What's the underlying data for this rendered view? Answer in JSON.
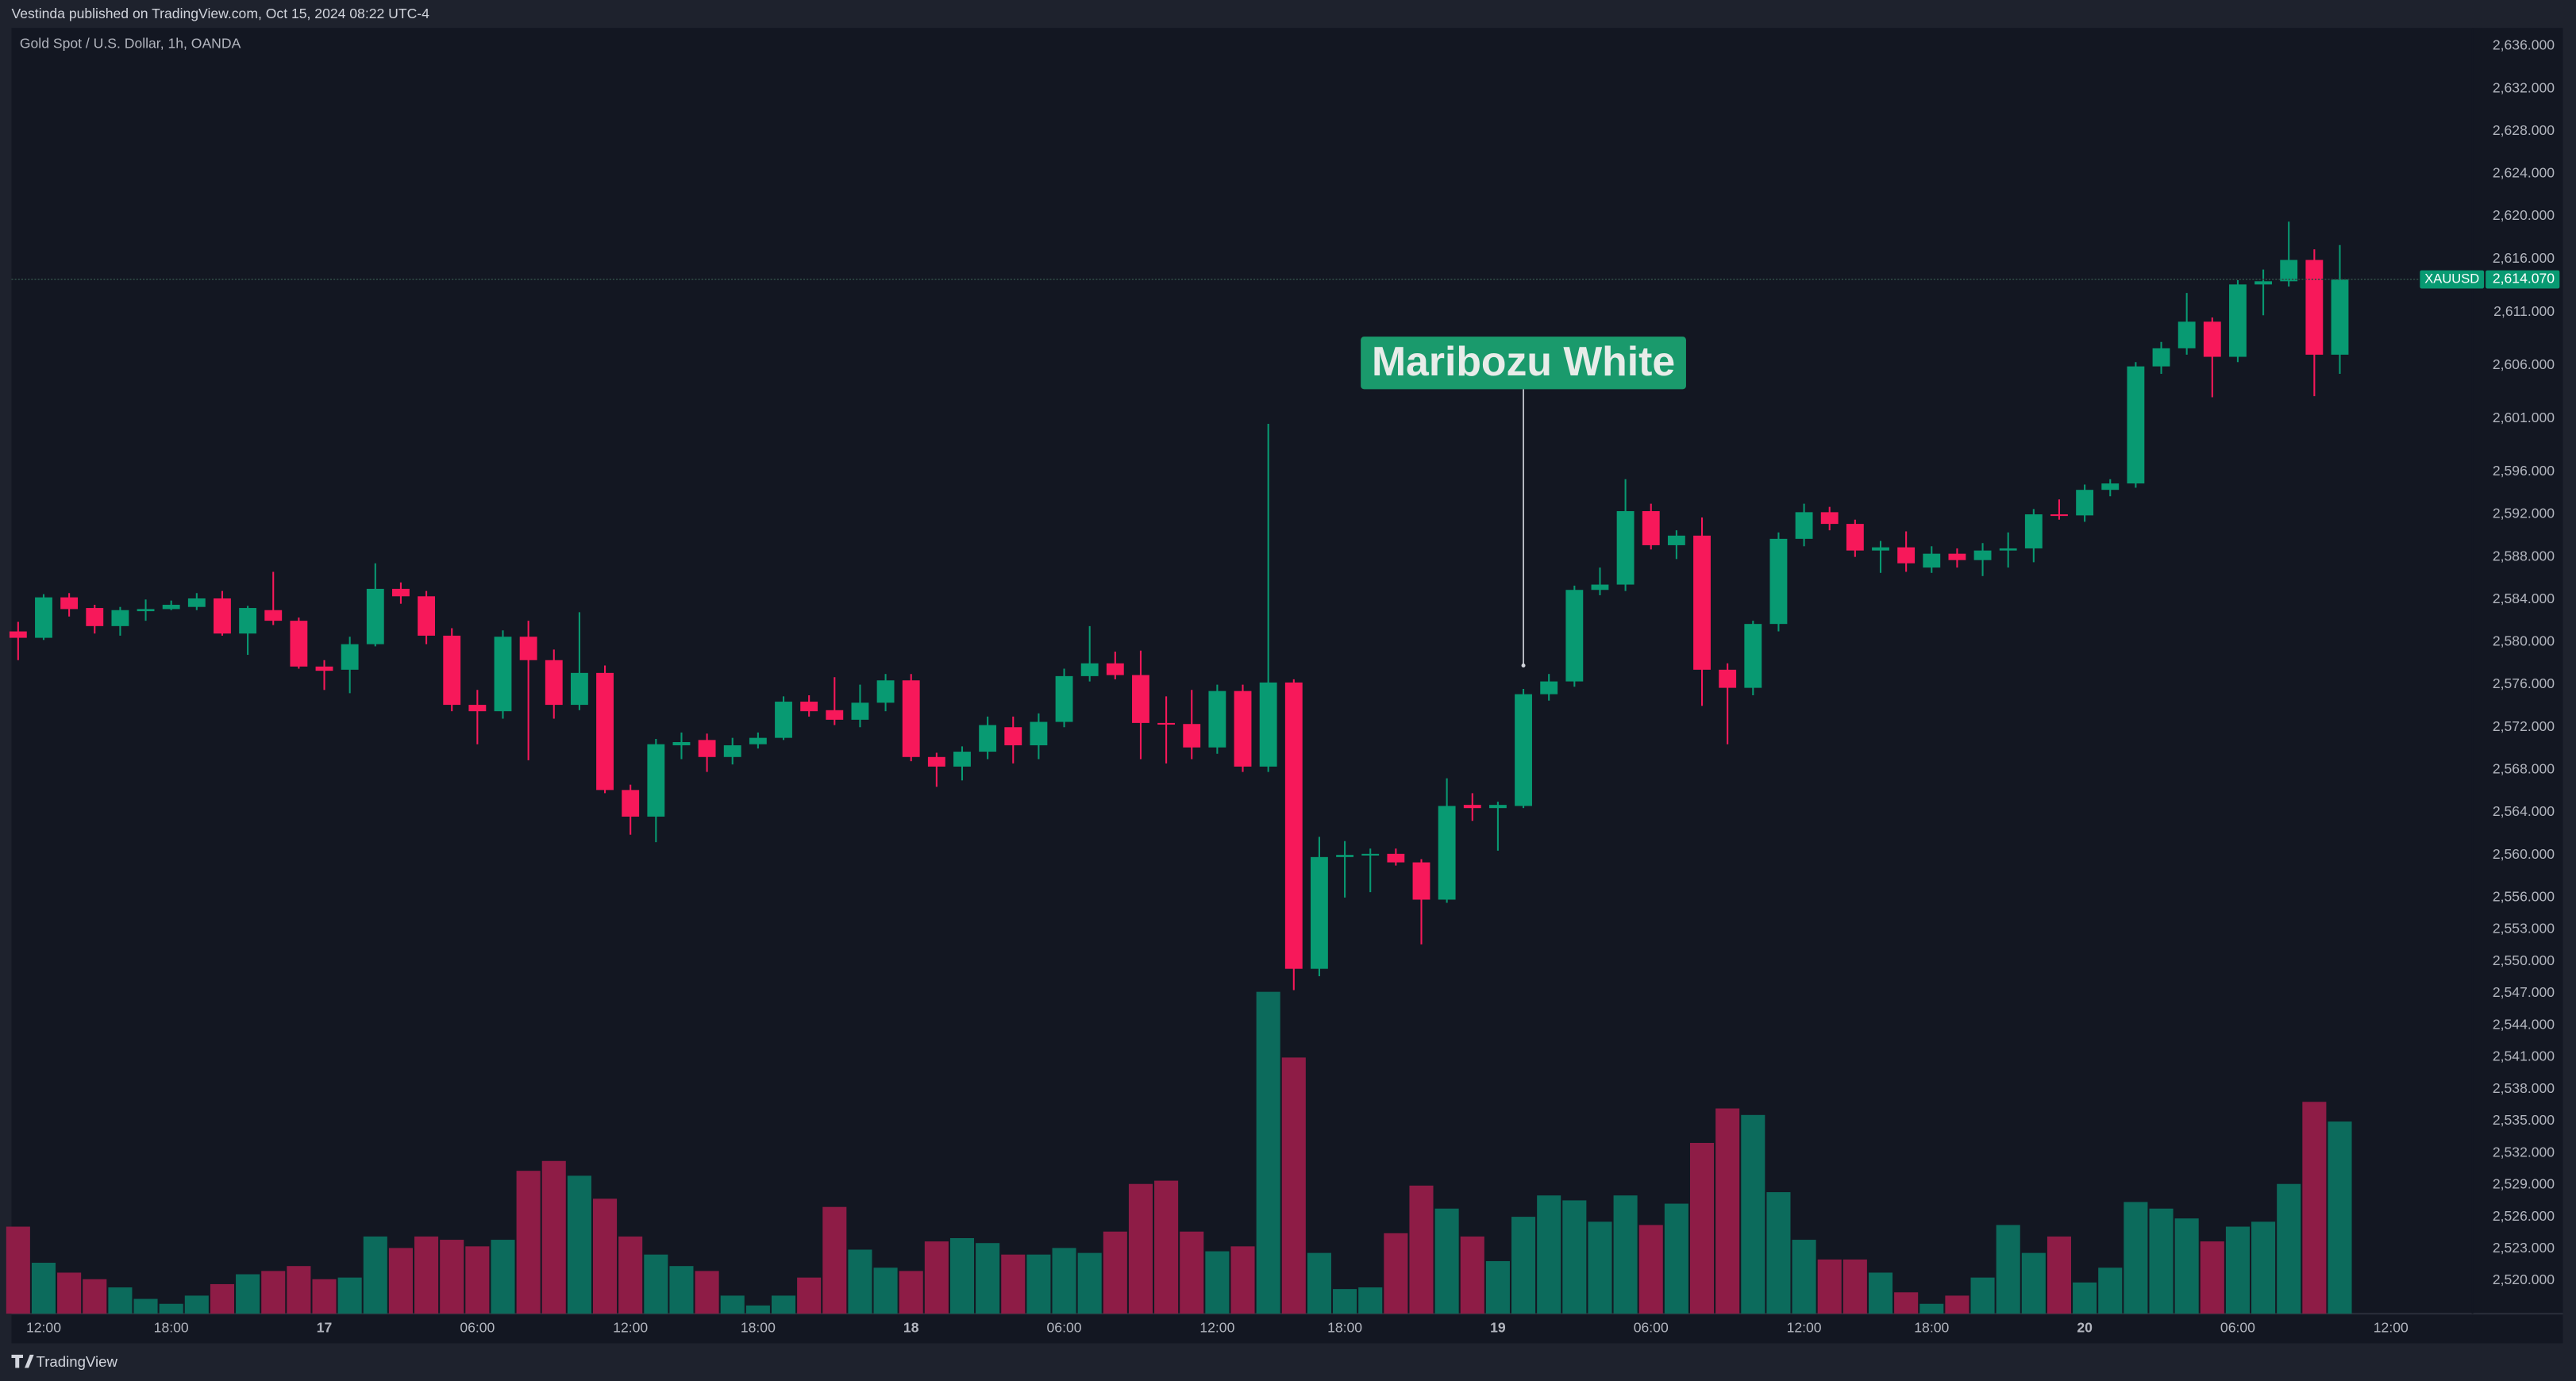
{
  "header": "Vestinda published on TradingView.com, Oct 15, 2024 08:22 UTC-4",
  "footer": "TradingView",
  "chart_data": {
    "type": "candlestick",
    "title": "Gold Spot / U.S. Dollar, 1h, OANDA",
    "up_color": "#089a72",
    "down_color": "#f7185a",
    "volume_up_color": "#0c6b5c",
    "volume_down_color": "#8e1c46",
    "xlim": [
      -0.26,
      96.2
    ],
    "xticks": [
      {
        "value": 1,
        "label": "12:00"
      },
      {
        "value": 6,
        "label": "18:00"
      },
      {
        "value": 12,
        "label": "17"
      },
      {
        "value": 18,
        "label": "06:00"
      },
      {
        "value": 24,
        "label": "12:00"
      },
      {
        "value": 29,
        "label": "18:00"
      },
      {
        "value": 35,
        "label": "18"
      },
      {
        "value": 41,
        "label": "06:00"
      },
      {
        "value": 47,
        "label": "12:00"
      },
      {
        "value": 52,
        "label": "18:00"
      },
      {
        "value": 58,
        "label": "19"
      },
      {
        "value": 64,
        "label": "06:00"
      },
      {
        "value": 70,
        "label": "12:00"
      },
      {
        "value": 75,
        "label": "18:00"
      },
      {
        "value": 81,
        "label": "20"
      },
      {
        "value": 87,
        "label": "06:00"
      },
      {
        "value": 93,
        "label": "12:00"
      }
    ],
    "ylim": [
      2516.9,
      2637.7
    ],
    "yticks": [
      {
        "value": 2636,
        "label": "2,636.000"
      },
      {
        "value": 2632,
        "label": "2,632.000"
      },
      {
        "value": 2628,
        "label": "2,628.000"
      },
      {
        "value": 2624,
        "label": "2,624.000"
      },
      {
        "value": 2620,
        "label": "2,620.000"
      },
      {
        "value": 2616,
        "label": "2,616.000"
      },
      {
        "value": 2611,
        "label": "2,611.000"
      },
      {
        "value": 2606,
        "label": "2,606.000"
      },
      {
        "value": 2601,
        "label": "2,601.000"
      },
      {
        "value": 2596,
        "label": "2,596.000"
      },
      {
        "value": 2592,
        "label": "2,592.000"
      },
      {
        "value": 2588,
        "label": "2,588.000"
      },
      {
        "value": 2584,
        "label": "2,584.000"
      },
      {
        "value": 2580,
        "label": "2,580.000"
      },
      {
        "value": 2576,
        "label": "2,576.000"
      },
      {
        "value": 2572,
        "label": "2,572.000"
      },
      {
        "value": 2568,
        "label": "2,568.000"
      },
      {
        "value": 2564,
        "label": "2,564.000"
      },
      {
        "value": 2560,
        "label": "2,560.000"
      },
      {
        "value": 2556,
        "label": "2,556.000"
      },
      {
        "value": 2553,
        "label": "2,553.000"
      },
      {
        "value": 2550,
        "label": "2,550.000"
      },
      {
        "value": 2547,
        "label": "2,547.000"
      },
      {
        "value": 2544,
        "label": "2,544.000"
      },
      {
        "value": 2541,
        "label": "2,541.000"
      },
      {
        "value": 2538,
        "label": "2,538.000"
      },
      {
        "value": 2535,
        "label": "2,535.000"
      },
      {
        "value": 2532,
        "label": "2,532.000"
      },
      {
        "value": 2529,
        "label": "2,529.000"
      },
      {
        "value": 2526,
        "label": "2,526.000"
      },
      {
        "value": 2523,
        "label": "2,523.000"
      },
      {
        "value": 2520,
        "label": "2,520.000"
      }
    ],
    "grid": false,
    "volume_ylim": [
      0,
      783
    ],
    "open": [
      2581.0,
      2580.4,
      2584.2,
      2583.2,
      2581.5,
      2582.9,
      2583.1,
      2583.3,
      2584.1,
      2580.8,
      2583.0,
      2582.0,
      2577.7,
      2577.4,
      2579.8,
      2585.0,
      2584.3,
      2580.6,
      2574.1,
      2573.5,
      2580.5,
      2578.3,
      2574.1,
      2577.1,
      2566.1,
      2563.6,
      2570.3,
      2570.8,
      2569.2,
      2570.4,
      2571.0,
      2574.4,
      2573.6,
      2572.7,
      2574.3,
      2576.4,
      2569.2,
      2568.3,
      2569.7,
      2572.0,
      2570.3,
      2572.5,
      2576.8,
      2578.0,
      2576.9,
      2572.4,
      2572.3,
      2570.1,
      2575.4,
      2568.3,
      2576.2,
      2549.3,
      2559.8,
      2560.0,
      2560.1,
      2559.3,
      2555.8,
      2564.7,
      2564.4,
      2564.6,
      2575.1,
      2576.3,
      2584.9,
      2585.4,
      2592.3,
      2589.1,
      2590.0,
      2577.4,
      2575.7,
      2581.7,
      2589.7,
      2592.2,
      2591.1,
      2588.6,
      2588.9,
      2587.0,
      2588.3,
      2587.7,
      2588.6,
      2588.8,
      2592.0,
      2591.9,
      2594.3,
      2594.9,
      2605.9,
      2607.6,
      2610.1,
      2606.8,
      2613.6,
      2613.9,
      2615.9,
      2607.0
    ],
    "high": [
      2581.9,
      2584.5,
      2584.6,
      2583.5,
      2583.3,
      2584.0,
      2583.9,
      2584.6,
      2584.8,
      2583.4,
      2586.6,
      2582.3,
      2578.3,
      2580.5,
      2587.4,
      2585.6,
      2584.8,
      2581.3,
      2575.5,
      2581.1,
      2582.0,
      2579.3,
      2582.8,
      2577.8,
      2566.6,
      2570.9,
      2571.5,
      2571.4,
      2571.0,
      2571.5,
      2574.9,
      2575.0,
      2576.7,
      2576.0,
      2577.0,
      2577.0,
      2569.6,
      2570.2,
      2573.0,
      2573.0,
      2573.3,
      2577.5,
      2581.5,
      2579.1,
      2579.2,
      2574.9,
      2575.5,
      2576.0,
      2576.0,
      2600.5,
      2576.5,
      2561.7,
      2561.3,
      2560.6,
      2560.6,
      2559.6,
      2567.2,
      2565.8,
      2565.0,
      2575.6,
      2577.0,
      2585.3,
      2587.0,
      2595.3,
      2593.0,
      2590.5,
      2591.7,
      2578.0,
      2582.0,
      2590.3,
      2593.0,
      2592.7,
      2591.5,
      2589.5,
      2590.4,
      2589.0,
      2588.8,
      2589.3,
      2590.3,
      2592.5,
      2593.4,
      2594.8,
      2595.3,
      2606.3,
      2608.2,
      2612.8,
      2610.5,
      2614.0,
      2615.0,
      2619.5,
      2616.9,
      2617.3
    ],
    "low": [
      2578.3,
      2580.2,
      2582.4,
      2580.8,
      2580.6,
      2582.0,
      2583.0,
      2583.0,
      2580.6,
      2578.8,
      2581.6,
      2577.5,
      2575.5,
      2575.2,
      2579.6,
      2583.6,
      2579.8,
      2573.5,
      2570.4,
      2572.8,
      2568.9,
      2572.8,
      2573.6,
      2565.8,
      2561.9,
      2561.2,
      2569.0,
      2567.8,
      2568.5,
      2570.0,
      2570.8,
      2573.0,
      2572.2,
      2572.0,
      2573.5,
      2568.8,
      2566.4,
      2567.0,
      2569.0,
      2568.6,
      2569.0,
      2572.0,
      2576.3,
      2576.5,
      2569.0,
      2568.6,
      2569.0,
      2569.5,
      2567.8,
      2567.8,
      2547.3,
      2548.6,
      2556.0,
      2556.5,
      2559.0,
      2551.6,
      2555.5,
      2563.2,
      2560.4,
      2564.4,
      2574.5,
      2575.8,
      2584.4,
      2584.8,
      2588.7,
      2587.8,
      2574.0,
      2570.4,
      2575.0,
      2581.0,
      2589.0,
      2590.5,
      2588.0,
      2586.5,
      2586.6,
      2586.5,
      2587.0,
      2586.2,
      2587.0,
      2587.5,
      2591.5,
      2591.3,
      2593.7,
      2594.5,
      2605.2,
      2607.0,
      2603.0,
      2606.3,
      2610.7,
      2613.4,
      2603.1,
      2605.2
    ],
    "close": [
      2580.4,
      2584.2,
      2583.1,
      2581.5,
      2583.0,
      2583.1,
      2583.5,
      2584.1,
      2580.8,
      2583.2,
      2582.0,
      2577.7,
      2577.3,
      2579.8,
      2585.0,
      2584.3,
      2580.6,
      2574.1,
      2573.5,
      2580.5,
      2578.3,
      2574.1,
      2577.1,
      2566.1,
      2563.6,
      2570.4,
      2570.6,
      2569.2,
      2570.3,
      2571.0,
      2574.4,
      2573.5,
      2572.7,
      2574.3,
      2576.4,
      2569.2,
      2568.3,
      2569.7,
      2572.2,
      2570.3,
      2572.5,
      2576.8,
      2578.0,
      2576.9,
      2572.4,
      2572.3,
      2570.1,
      2575.4,
      2568.3,
      2576.2,
      2549.3,
      2559.8,
      2560.0,
      2560.1,
      2559.3,
      2555.8,
      2564.6,
      2564.4,
      2564.7,
      2575.1,
      2576.3,
      2584.9,
      2585.4,
      2592.3,
      2589.1,
      2590.0,
      2577.4,
      2575.7,
      2581.7,
      2589.7,
      2592.2,
      2591.1,
      2588.6,
      2588.9,
      2587.4,
      2588.3,
      2587.7,
      2588.6,
      2588.8,
      2592.0,
      2591.9,
      2594.3,
      2594.9,
      2605.9,
      2607.6,
      2610.1,
      2606.8,
      2613.6,
      2613.9,
      2615.9,
      2607.0,
      2614.07
    ],
    "volume": [
      53,
      31,
      25,
      21,
      16,
      9,
      6,
      11,
      18,
      24,
      26,
      29,
      21,
      22,
      47,
      40,
      47,
      45,
      41,
      45,
      87,
      93,
      84,
      70,
      47,
      36,
      29,
      26,
      11,
      5,
      11,
      22,
      65,
      39,
      28,
      26,
      44,
      46,
      43,
      36,
      36,
      40,
      37,
      50,
      79,
      81,
      50,
      38,
      41,
      196,
      156,
      37,
      15,
      16,
      49,
      78,
      64,
      47,
      32,
      59,
      72,
      69,
      56,
      72,
      54,
      67,
      104,
      125,
      121,
      74,
      45,
      33,
      33,
      25,
      13,
      6,
      11,
      22,
      54,
      37,
      47,
      19,
      28,
      68,
      64,
      58,
      44,
      53,
      56,
      79,
      129,
      117
    ],
    "last_price": {
      "symbol": "XAUUSD",
      "value": 2614.07,
      "label": "2,614.070"
    },
    "annotation": {
      "text": "Maribozu White",
      "x": 59,
      "y": 2577.8,
      "color": "#1a9a6c"
    }
  }
}
